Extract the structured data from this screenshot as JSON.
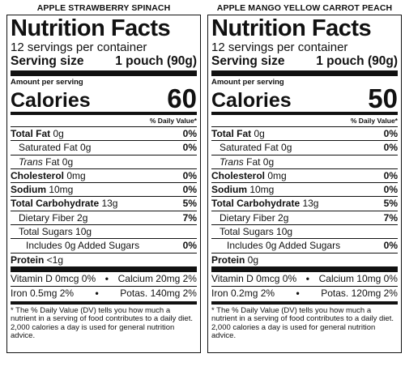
{
  "common": {
    "title": "Nutrition Facts",
    "servings": "12 servings per container",
    "serving_size_label": "Serving size",
    "serving_size_value": "1 pouch (90g)",
    "amount_per_serving": "Amount per serving",
    "calories_label": "Calories",
    "dv_header": "% Daily Value*",
    "footnote": "* The % Daily Value (DV) tells you how much a nutrient in a serving of food contributes to a daily diet. 2,000 calories a day is used for general nutrition advice.",
    "separator": "•",
    "labels": {
      "total_fat": "Total Fat",
      "saturated_fat": "Saturated Fat",
      "trans_fat_italic": "Trans",
      "trans_fat_rest": " Fat",
      "cholesterol": "Cholesterol",
      "sodium": "Sodium",
      "total_carb": "Total Carbohydrate",
      "fiber": "Dietary Fiber",
      "sugars": "Total Sugars",
      "added_sugars": "Includes 0g Added Sugars",
      "protein": "Protein"
    }
  },
  "left": {
    "product_name": "APPLE STRAWBERRY SPINACH",
    "calories": "60",
    "total_fat": {
      "amount": " 0g",
      "dv": "0%"
    },
    "saturated_fat": {
      "amount": " 0g",
      "dv": "0%"
    },
    "trans_fat": {
      "amount": " 0g"
    },
    "cholesterol": {
      "amount": " 0mg",
      "dv": "0%"
    },
    "sodium": {
      "amount": " 10mg",
      "dv": "0%"
    },
    "total_carb": {
      "amount": " 13g",
      "dv": "5%"
    },
    "fiber": {
      "amount": " 2g",
      "dv": "7%"
    },
    "sugars": {
      "amount": " 10g"
    },
    "added_sugars": {
      "dv": "0%"
    },
    "protein": {
      "amount": " <1g"
    },
    "vitamin_d": "Vitamin D 0mcg 0%",
    "calcium": "Calcium 20mg 2%",
    "iron": "Iron 0.5mg 2%",
    "potassium": "Potas. 140mg 2%"
  },
  "right": {
    "product_name": "APPLE MANGO YELLOW CARROT PEACH",
    "calories": "50",
    "total_fat": {
      "amount": " 0g",
      "dv": "0%"
    },
    "saturated_fat": {
      "amount": " 0g",
      "dv": "0%"
    },
    "trans_fat": {
      "amount": " 0g"
    },
    "cholesterol": {
      "amount": " 0mg",
      "dv": "0%"
    },
    "sodium": {
      "amount": " 10mg",
      "dv": "0%"
    },
    "total_carb": {
      "amount": " 13g",
      "dv": "5%"
    },
    "fiber": {
      "amount": " 2g",
      "dv": "7%"
    },
    "sugars": {
      "amount": " 10g"
    },
    "added_sugars": {
      "dv": "0%"
    },
    "protein": {
      "amount": " 0g"
    },
    "vitamin_d": "Vitamin D 0mcg 0%",
    "calcium": "Calcium 10mg 0%",
    "iron": "Iron 0.2mg 2%",
    "potassium": "Potas. 120mg 2%"
  }
}
